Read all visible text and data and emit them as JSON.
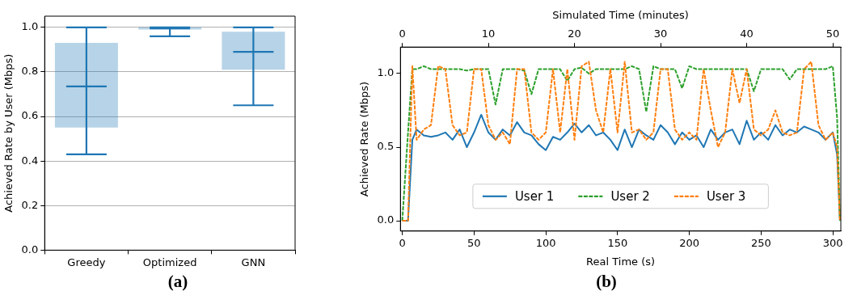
{
  "chart_data": [
    {
      "type": "box",
      "categories": [
        "Greedy",
        "Optimized",
        "GNN"
      ],
      "ylabel": "Achieved Rate by User (Mbps)",
      "color": "#1f77b4",
      "boxes": [
        {
          "low": 0.43,
          "q1": 0.55,
          "median": 0.735,
          "q3": 0.93,
          "high": 1.0
        },
        {
          "low": 0.96,
          "q1": 0.99,
          "median": 0.995,
          "q3": 1.0,
          "high": 1.0
        },
        {
          "low": 0.65,
          "q1": 0.81,
          "median": 0.89,
          "q3": 0.98,
          "high": 1.0
        }
      ],
      "ylim": [
        0,
        1.05
      ],
      "yticks": [
        {
          "value": 0,
          "label": "0.0"
        },
        {
          "value": 0.2,
          "label": "0.2"
        },
        {
          "value": 0.4,
          "label": "0.4"
        },
        {
          "value": 0.6,
          "label": "0.6"
        },
        {
          "value": 0.8,
          "label": "0.8"
        },
        {
          "value": 1,
          "label": "1.0"
        }
      ],
      "grid": "y",
      "annotations": [
        "(a)"
      ]
    },
    {
      "type": "line",
      "xlabel": "Real Time (s)",
      "ylabel": "Achieved Rate (Mbps)",
      "x2label": "Simulated Time (minutes)",
      "x": [
        0,
        4,
        7,
        10,
        15,
        20,
        25,
        30,
        35,
        40,
        45,
        50,
        55,
        60,
        65,
        70,
        75,
        80,
        85,
        90,
        95,
        100,
        105,
        110,
        115,
        120,
        125,
        130,
        135,
        140,
        145,
        150,
        155,
        160,
        165,
        170,
        175,
        180,
        185,
        190,
        195,
        200,
        205,
        210,
        215,
        220,
        225,
        230,
        235,
        240,
        245,
        250,
        255,
        260,
        265,
        270,
        275,
        280,
        285,
        290,
        295,
        300,
        303,
        305
      ],
      "series": [
        {
          "name": "User 1",
          "color": "#1f77b4",
          "line_style": "solid",
          "values": [
            0,
            0,
            0.55,
            0.62,
            0.58,
            0.57,
            0.58,
            0.6,
            0.55,
            0.62,
            0.5,
            0.6,
            0.72,
            0.6,
            0.55,
            0.62,
            0.58,
            0.67,
            0.6,
            0.58,
            0.52,
            0.48,
            0.57,
            0.55,
            0.6,
            0.66,
            0.6,
            0.65,
            0.58,
            0.6,
            0.55,
            0.48,
            0.62,
            0.5,
            0.62,
            0.58,
            0.55,
            0.65,
            0.6,
            0.52,
            0.6,
            0.55,
            0.58,
            0.5,
            0.62,
            0.55,
            0.6,
            0.62,
            0.52,
            0.68,
            0.55,
            0.6,
            0.55,
            0.65,
            0.58,
            0.62,
            0.6,
            0.64,
            0.62,
            0.6,
            0.55,
            0.6,
            0.45,
            0
          ]
        },
        {
          "name": "User 2",
          "color": "#2ca02c",
          "line_style": "dashed",
          "values": [
            0,
            0.6,
            1.03,
            1.03,
            1.05,
            1.03,
            1.03,
            1.03,
            1.03,
            1.03,
            1.02,
            1.03,
            1.03,
            1.03,
            0.79,
            1.03,
            1.03,
            1.03,
            1.02,
            0.86,
            1.03,
            1.03,
            1.03,
            1.03,
            0.95,
            1.03,
            1.04,
            1.0,
            1.03,
            1.03,
            1.03,
            1.03,
            1.03,
            1.05,
            1.03,
            0.74,
            1.05,
            1.03,
            1.03,
            1.03,
            0.9,
            1.05,
            1.03,
            1.03,
            1.03,
            1.03,
            1.03,
            1.03,
            1.03,
            1.03,
            0.88,
            1.03,
            1.03,
            1.03,
            1.03,
            0.96,
            1.03,
            1.03,
            1.03,
            1.03,
            1.03,
            1.05,
            0.7,
            0
          ]
        },
        {
          "name": "User 3",
          "color": "#ff7f0e",
          "line_style": "dashed",
          "values": [
            0,
            0,
            1.05,
            0.55,
            0.62,
            0.65,
            1.05,
            1.03,
            0.65,
            0.58,
            0.6,
            1.03,
            1.03,
            0.65,
            0.55,
            0.6,
            0.52,
            1.03,
            1.03,
            0.6,
            0.55,
            0.6,
            1.03,
            0.6,
            1.03,
            0.55,
            1.05,
            1.08,
            0.75,
            0.6,
            1.03,
            0.6,
            1.08,
            0.6,
            0.62,
            0.55,
            0.6,
            1.03,
            1.03,
            0.62,
            0.55,
            0.6,
            0.55,
            1.03,
            0.75,
            0.5,
            0.6,
            1.03,
            0.8,
            1.03,
            0.62,
            0.58,
            0.62,
            0.75,
            0.6,
            0.58,
            0.6,
            1.03,
            1.08,
            0.65,
            0.55,
            0.6,
            0.5,
            0
          ]
        }
      ],
      "xlim": [
        -1.3,
        305.6
      ],
      "xticks": [
        0,
        50,
        100,
        150,
        200,
        250,
        300
      ],
      "x2lim": [
        -0.22,
        50.93
      ],
      "x2ticks": [
        0,
        10,
        20,
        30,
        40,
        50
      ],
      "ylim": [
        -0.07,
        1.18
      ],
      "yticks": [
        {
          "value": 0,
          "label": "0.0"
        },
        {
          "value": 0.5,
          "label": "0.5"
        },
        {
          "value": 1,
          "label": "1.0"
        }
      ],
      "legend": "bottom",
      "annotations": [
        "(b)"
      ]
    }
  ]
}
